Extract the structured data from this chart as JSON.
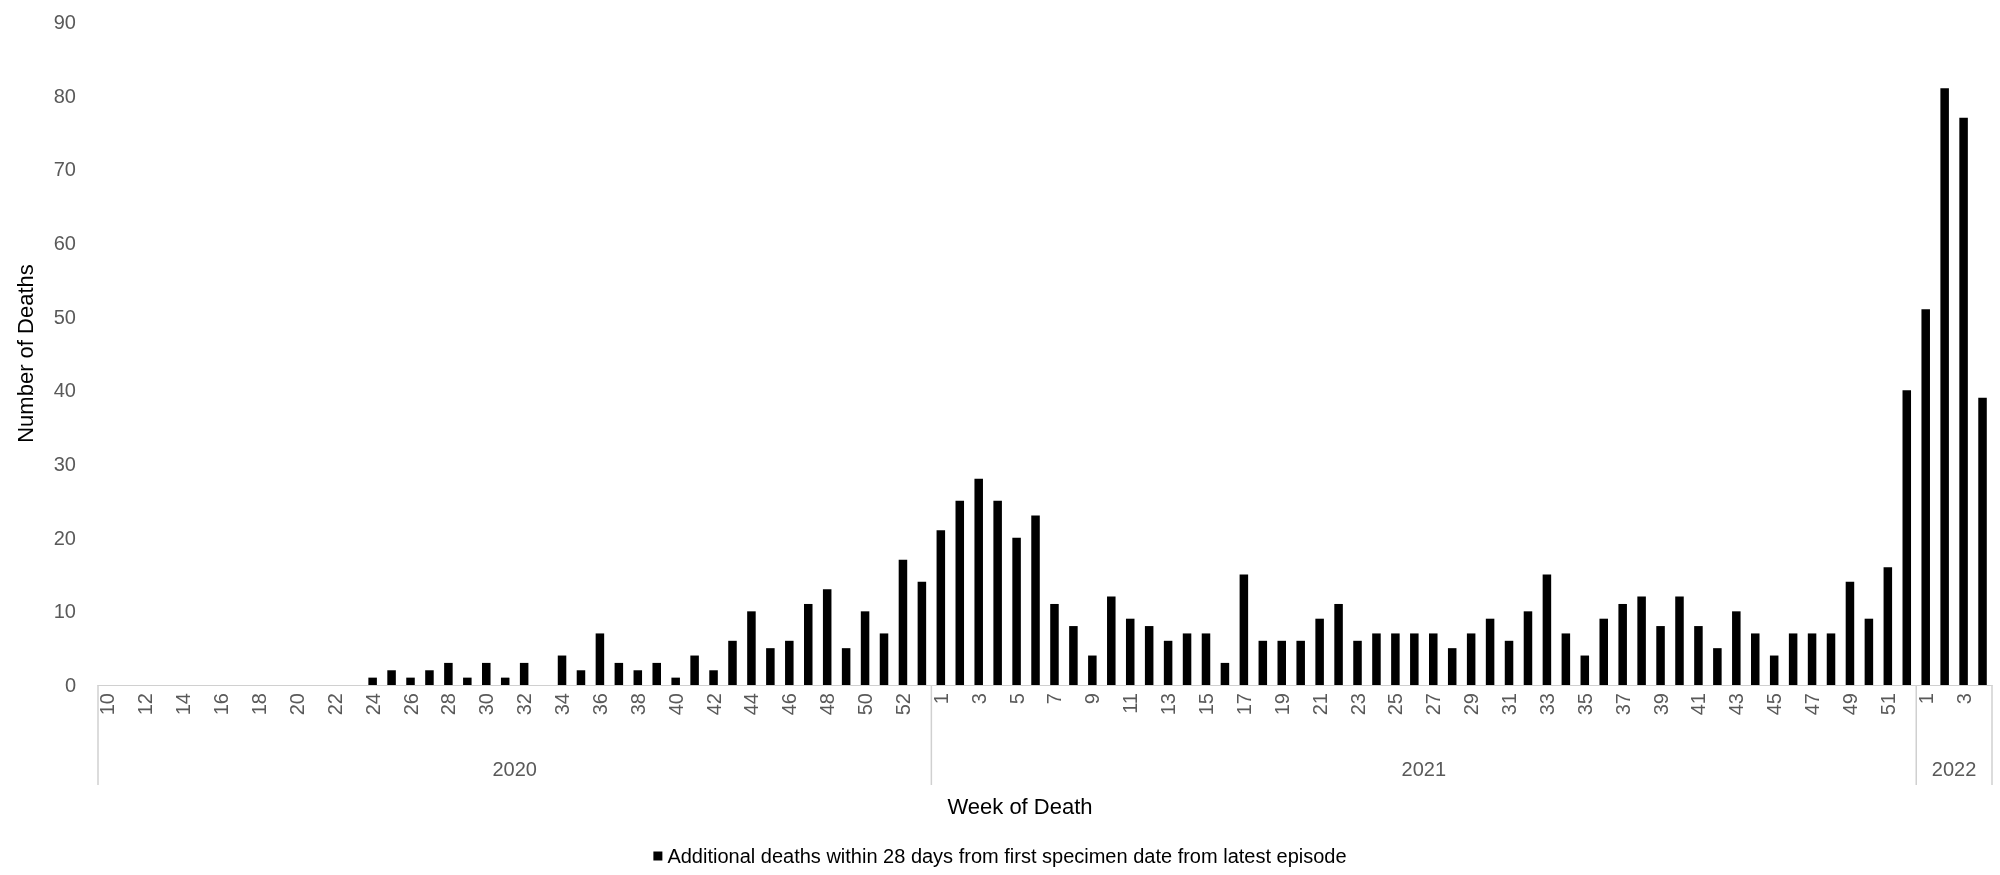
{
  "chart_data": {
    "type": "bar",
    "xlabel": "Week of Death",
    "ylabel": "Number of Deaths",
    "categories": [
      "10",
      null,
      "12",
      null,
      "14",
      null,
      "16",
      null,
      "18",
      null,
      "20",
      null,
      "22",
      null,
      "24",
      null,
      "26",
      null,
      "28",
      null,
      "30",
      null,
      "32",
      null,
      "34",
      null,
      "36",
      null,
      "38",
      null,
      "40",
      null,
      "42",
      null,
      "44",
      null,
      "46",
      null,
      "48",
      null,
      "50",
      null,
      "52",
      null,
      "1",
      null,
      "3",
      null,
      "5",
      null,
      "7",
      null,
      "9",
      null,
      "11",
      null,
      "13",
      null,
      "15",
      null,
      "17",
      null,
      "19",
      null,
      "21",
      null,
      "23",
      null,
      "25",
      null,
      "27",
      null,
      "29",
      null,
      "31",
      null,
      "33",
      null,
      "35",
      null,
      "37",
      null,
      "39",
      null,
      "41",
      null,
      "43",
      null,
      "45",
      null,
      "47",
      null,
      "49",
      null,
      "51",
      null,
      "1",
      null,
      "3",
      null
    ],
    "series": [
      {
        "name": "Additional deaths within 28 days from first specimen date from latest episode",
        "color": "#000000",
        "values": [
          0,
          0,
          0,
          0,
          0,
          0,
          0,
          0,
          0,
          0,
          0,
          0,
          0,
          0,
          1,
          2,
          1,
          2,
          3,
          1,
          3,
          1,
          3,
          0,
          4,
          2,
          7,
          3,
          2,
          3,
          1,
          4,
          2,
          6,
          10,
          5,
          6,
          11,
          13,
          5,
          10,
          7,
          17,
          14,
          21,
          25,
          28,
          25,
          20,
          23,
          11,
          8,
          4,
          12,
          9,
          8,
          6,
          7,
          7,
          3,
          15,
          6,
          6,
          6,
          9,
          11,
          6,
          7,
          7,
          7,
          7,
          5,
          7,
          9,
          6,
          10,
          15,
          7,
          4,
          9,
          11,
          12,
          8,
          12,
          8,
          5,
          10,
          7,
          4,
          7,
          7,
          7,
          14,
          9,
          16,
          40,
          51,
          81,
          77,
          39
        ]
      }
    ],
    "annotations": [
      "2020",
      "2021",
      "2022"
    ],
    "ylim": [
      0,
      90
    ],
    "yticks": [
      0,
      10,
      20,
      30,
      40,
      50,
      60,
      70,
      80,
      90
    ],
    "grid": false,
    "legend": "bottom"
  }
}
